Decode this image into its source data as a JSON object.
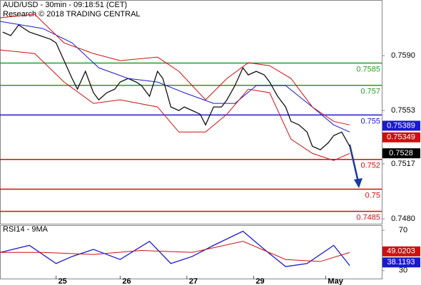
{
  "chart_data": [
    {
      "type": "line",
      "title": "AUD/USD - 30min - 09:18:51 (CET)",
      "subtitle": "Research © 2018 TRADING CENTRAL",
      "xlim": [
        0,
        143
      ],
      "xticks": [
        {
          "value": 21,
          "label": "25"
        },
        {
          "value": 45,
          "label": "26"
        },
        {
          "value": 70,
          "label": "27"
        },
        {
          "value": 95,
          "label": "29"
        },
        {
          "value": 122,
          "label": "May"
        }
      ],
      "ylim": [
        0.74762,
        0.76275
      ],
      "yticks": [
        {
          "value": 0.759,
          "label": "0.7590"
        },
        0.7553,
        0.7517,
        {
          "value": 0.748,
          "label": "0.7480"
        }
      ],
      "levels": [
        {
          "value": 0.7585,
          "color": "#2a9a2a"
        },
        {
          "value": 0.757,
          "color": "#2a9a2a"
        },
        {
          "value": 0.755,
          "color": "#1a1acc"
        },
        {
          "value": 0.752,
          "color": "#cc1010"
        },
        {
          "value": 0.75,
          "color": "#cc1010"
        },
        {
          "value": 0.7485,
          "color": "#cc1010"
        }
      ],
      "markers": [
        {
          "value": 0.75389,
          "color": "#1a1acc"
        },
        {
          "value": 0.75349,
          "color": "#cc1010"
        },
        {
          "value": 0.7528,
          "color": "#000000"
        }
      ],
      "series": [
        {
          "color": "#111111",
          "x": [
            1,
            4,
            7,
            11,
            15,
            19,
            21,
            24,
            27,
            29,
            32,
            35,
            37,
            40,
            43,
            45,
            48,
            51,
            53,
            56,
            59,
            61,
            64,
            67,
            69,
            72,
            75,
            77,
            80,
            83,
            85,
            88,
            91,
            93,
            96,
            99,
            101,
            104,
            107,
            109,
            112,
            115,
            117,
            120,
            123,
            125,
            128,
            131
          ],
          "values": [
            0.76059,
            0.76035,
            0.76107,
            0.76059,
            0.76035,
            0.7601,
            0.75986,
            0.75866,
            0.75746,
            0.75674,
            0.75794,
            0.7565,
            0.75602,
            0.7565,
            0.75674,
            0.75722,
            0.75746,
            0.75722,
            0.75698,
            0.75626,
            0.75794,
            0.75746,
            0.75554,
            0.7553,
            0.75554,
            0.7553,
            0.75505,
            0.75433,
            0.75554,
            0.75554,
            0.75602,
            0.75698,
            0.75818,
            0.7577,
            0.75794,
            0.7577,
            0.75722,
            0.75626,
            0.75554,
            0.75457,
            0.75433,
            0.75385,
            0.75289,
            0.75265,
            0.75313,
            0.75361,
            0.75385,
            0.75289
          ]
        },
        {
          "color": "#1a1acc",
          "x": [
            0,
            16,
            27,
            37,
            48,
            59,
            69,
            80,
            88,
            96,
            107,
            117,
            125,
            131
          ],
          "values": [
            0.76131,
            0.76083,
            0.75986,
            0.75818,
            0.75746,
            0.75722,
            0.7565,
            0.75578,
            0.75578,
            0.75698,
            0.75698,
            0.75554,
            0.75433,
            0.75385
          ]
        },
        {
          "color": "#cc1010",
          "x": [
            0,
            13,
            24,
            35,
            45,
            59,
            67,
            77,
            85,
            93,
            101,
            109,
            117,
            125,
            131
          ],
          "values": [
            0.76155,
            0.76179,
            0.75986,
            0.75914,
            0.75866,
            0.7589,
            0.75794,
            0.75602,
            0.75746,
            0.75852,
            0.75832,
            0.75746,
            0.75554,
            0.75457,
            0.75433
          ]
        },
        {
          "color": "#cc1010",
          "x": [
            0,
            13,
            24,
            35,
            45,
            59,
            67,
            77,
            85,
            93,
            101,
            109,
            117,
            125,
            131
          ],
          "values": [
            0.75938,
            0.75914,
            0.75722,
            0.75578,
            0.75602,
            0.75554,
            0.75385,
            0.75385,
            0.75505,
            0.75674,
            0.7565,
            0.75337,
            0.75241,
            0.75193,
            0.75241
          ]
        }
      ]
    },
    {
      "type": "line",
      "title": "RSI14 - 9MA",
      "xlim": [
        0,
        143
      ],
      "ylim": [
        21.4,
        74.3
      ],
      "yticks": [
        70,
        30
      ],
      "markers": [
        {
          "value": 49.0203,
          "color": "#cc1010"
        },
        {
          "value": 38.1193,
          "color": "#1a1acc"
        }
      ],
      "series": [
        {
          "color": "#1a1acc",
          "x": [
            0,
            11,
            21,
            27,
            35,
            45,
            56,
            64,
            72,
            80,
            91,
            99,
            107,
            115,
            125,
            131
          ],
          "values": [
            47.9,
            55,
            37,
            44,
            51,
            41,
            59,
            37,
            44,
            55,
            69,
            51,
            34,
            37,
            55,
            35
          ]
        },
        {
          "color": "#cc1010",
          "x": [
            0,
            16,
            35,
            53,
            72,
            91,
            107,
            120,
            131
          ],
          "values": [
            48,
            48,
            46,
            50,
            48,
            59,
            41,
            39,
            48
          ]
        }
      ]
    }
  ]
}
